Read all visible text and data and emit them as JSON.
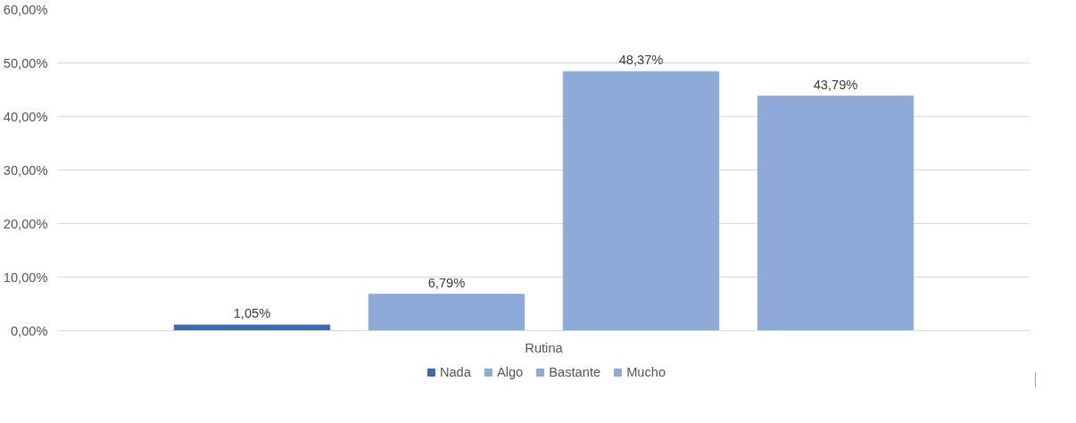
{
  "chart_data": {
    "type": "bar",
    "categories": [
      "Rutina"
    ],
    "series": [
      {
        "name": "Nada",
        "color": "#3f67b6",
        "values": [
          1.05
        ],
        "value_labels": [
          "1,05%"
        ]
      },
      {
        "name": "Algo",
        "color": "#8eaad9",
        "values": [
          6.79
        ],
        "value_labels": [
          "6,79%"
        ]
      },
      {
        "name": "Bastante",
        "color": "#8eaad9",
        "values": [
          48.37
        ],
        "value_labels": [
          "48,37%"
        ]
      },
      {
        "name": "Mucho",
        "color": "#8eaad9",
        "values": [
          43.79
        ],
        "value_labels": [
          "43,79%"
        ]
      }
    ],
    "ylim": [
      0,
      60
    ],
    "yticks": [
      {
        "value": 0,
        "label": "0,00%"
      },
      {
        "value": 10,
        "label": "10,00%"
      },
      {
        "value": 20,
        "label": "20,00%"
      },
      {
        "value": 30,
        "label": "30,00%"
      },
      {
        "value": 40,
        "label": "40,00%"
      },
      {
        "value": 50,
        "label": "50,00%"
      },
      {
        "value": 60,
        "label": "60,00%"
      }
    ],
    "grid": "y",
    "legend": "bottom"
  }
}
